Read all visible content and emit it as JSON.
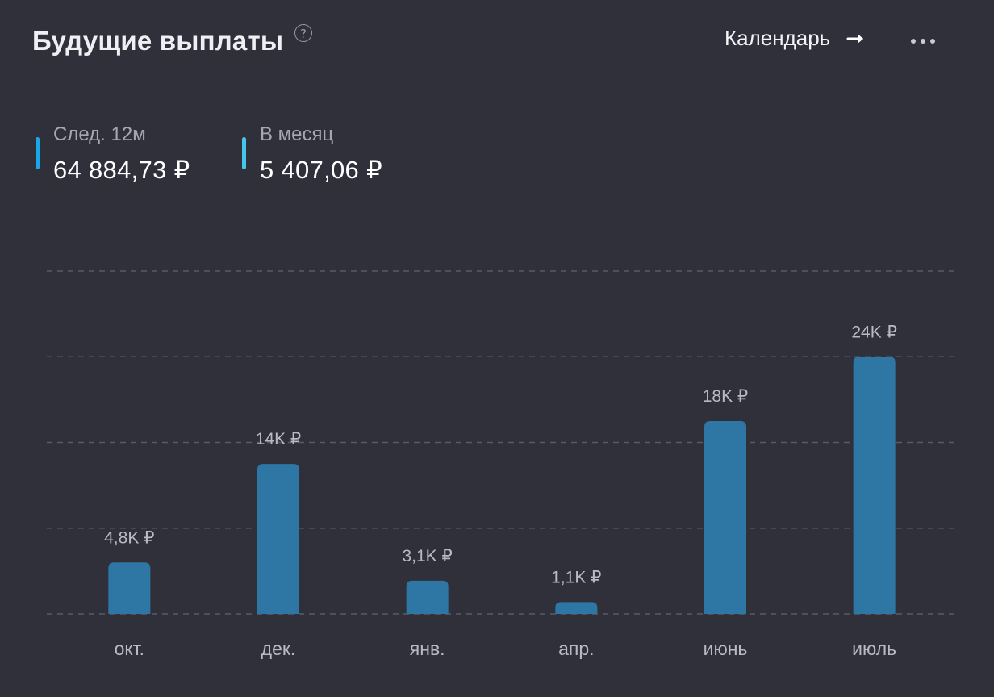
{
  "header": {
    "title": "Будущие выплаты",
    "help_glyph": "?",
    "calendar_label": "Календарь",
    "arrow_icon": "arrow-right-icon",
    "more_icon": "more-dots-icon"
  },
  "stats": [
    {
      "label": "След. 12м",
      "value": "64 884,73 ₽",
      "color": "#1aa7e8"
    },
    {
      "label": "В месяц",
      "value": "5 407,06 ₽",
      "color": "#45c7ea"
    }
  ],
  "colors": {
    "background": "#30303b",
    "bar": "#2e76a3",
    "grid": "#5a5b68",
    "tick_label": "#b9bac4",
    "data_label": "#b9bac4"
  },
  "chart_data": {
    "type": "bar",
    "categories": [
      "окт.",
      "дек.",
      "янв.",
      "апр.",
      "июнь",
      "июль"
    ],
    "values": [
      4800,
      14000,
      3100,
      1100,
      18000,
      24000
    ],
    "data_labels": [
      "4,8K ₽",
      "14K ₽",
      "3,1K ₽",
      "1,1K ₽",
      "18K ₽",
      "24K ₽"
    ],
    "ylim": [
      0,
      32000
    ],
    "grid": true,
    "grid_lines": [
      0,
      8000,
      16000,
      24000,
      32000
    ],
    "legend": "none"
  }
}
